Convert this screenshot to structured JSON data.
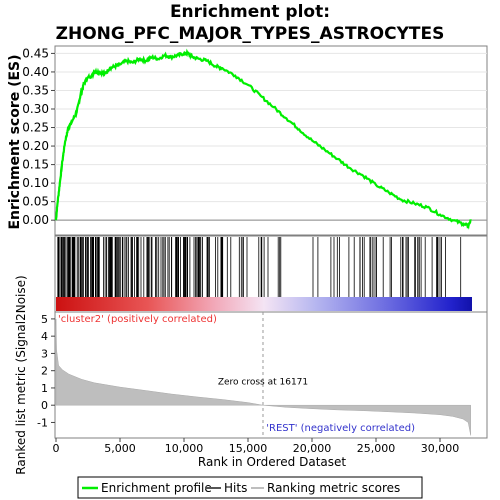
{
  "title_line1": "Enrichment plot:",
  "title_line2": "ZHONG_PFC_MAJOR_TYPES_ASTROCYTES",
  "colors": {
    "es_curve": "#00ee00",
    "hits": "#000000",
    "metric_fill": "#bebebe",
    "positive_label": "#ee3333",
    "negative_label": "#3333cc",
    "zero_line": "#888888",
    "frame": "#808080"
  },
  "chart_data": [
    {
      "type": "line",
      "name": "enrichment-score",
      "ylabel": "Enrichment score (ES)",
      "xlim": [
        0,
        32500
      ],
      "ylim": [
        -0.04,
        0.47
      ],
      "yticks": [
        0.0,
        0.05,
        0.1,
        0.15,
        0.2,
        0.25,
        0.3,
        0.35,
        0.4,
        0.45
      ],
      "ytick_labels": [
        "0.00",
        "0.05",
        "0.10",
        "0.15",
        "0.20",
        "0.25",
        "0.30",
        "0.35",
        "0.40",
        "0.45"
      ],
      "series": [
        {
          "name": "Enrichment profile",
          "x": [
            0,
            100,
            300,
            500,
            700,
            900,
            1100,
            1300,
            1600,
            1800,
            2000,
            2200,
            2500,
            2800,
            3000,
            3400,
            3800,
            4200,
            4600,
            5000,
            5500,
            6000,
            6500,
            7000,
            7500,
            8000,
            8500,
            9000,
            9500,
            10000,
            10300,
            10700,
            11200,
            11800,
            12500,
            13000,
            14000,
            15000,
            16000,
            17000,
            18000,
            19000,
            20000,
            21000,
            22000,
            23000,
            24000,
            25000,
            26000,
            27000,
            28000,
            29000,
            30000,
            31000,
            31800,
            32200,
            32400
          ],
          "y": [
            0.0,
            0.04,
            0.1,
            0.16,
            0.21,
            0.24,
            0.26,
            0.27,
            0.29,
            0.32,
            0.35,
            0.37,
            0.385,
            0.39,
            0.4,
            0.4,
            0.395,
            0.41,
            0.415,
            0.42,
            0.43,
            0.425,
            0.435,
            0.43,
            0.44,
            0.435,
            0.445,
            0.44,
            0.445,
            0.45,
            0.45,
            0.44,
            0.435,
            0.43,
            0.415,
            0.41,
            0.39,
            0.365,
            0.335,
            0.305,
            0.275,
            0.245,
            0.215,
            0.19,
            0.165,
            0.14,
            0.12,
            0.095,
            0.075,
            0.055,
            0.045,
            0.035,
            0.015,
            0.0,
            -0.01,
            -0.015,
            0.0
          ]
        }
      ]
    },
    {
      "type": "barcode",
      "name": "hits",
      "xlim": [
        0,
        32500
      ],
      "hit_density": [
        {
          "x0": 0,
          "x1": 3000,
          "density": 0.6
        },
        {
          "x0": 3000,
          "x1": 9500,
          "density": 0.35
        },
        {
          "x0": 9500,
          "x1": 12300,
          "density": 0.5
        },
        {
          "x0": 12300,
          "x1": 14500,
          "density": 0.15
        },
        {
          "x0": 14500,
          "x1": 17500,
          "density": 0.08
        },
        {
          "x0": 17500,
          "x1": 20000,
          "density": 0.05
        },
        {
          "x0": 20000,
          "x1": 24000,
          "density": 0.1
        },
        {
          "x0": 24000,
          "x1": 28000,
          "density": 0.12
        },
        {
          "x0": 28000,
          "x1": 30500,
          "density": 0.2
        },
        {
          "x0": 30500,
          "x1": 32400,
          "density": 0.06
        }
      ]
    },
    {
      "type": "area",
      "name": "ranked-list-metric",
      "xlabel": "Rank in Ordered Dataset",
      "ylabel": "Ranked list metric (Signal2Noise)",
      "xlim": [
        0,
        32500
      ],
      "ylim": [
        -1.9,
        5.4
      ],
      "xticks": [
        0,
        5000,
        10000,
        15000,
        20000,
        25000,
        30000
      ],
      "xtick_labels": [
        "0",
        "5,000",
        "10,000",
        "15,000",
        "20,000",
        "25,000",
        "30,000"
      ],
      "yticks": [
        -1,
        0,
        1,
        2,
        3,
        4,
        5
      ],
      "ytick_labels": [
        "-1",
        "0",
        "1",
        "2",
        "3",
        "4",
        "5"
      ],
      "zero_cross": 16171,
      "zero_cross_label": "Zero cross at 16171",
      "positive_label": "'cluster2' (positively correlated)",
      "negative_label": "'REST' (negatively correlated)",
      "x": [
        0,
        50,
        200,
        500,
        1000,
        2000,
        3000,
        5000,
        7000,
        9000,
        11000,
        13000,
        15000,
        16171,
        18000,
        20000,
        22000,
        24000,
        26000,
        28000,
        30000,
        31000,
        31800,
        32200,
        32400
      ],
      "y": [
        5.0,
        3.2,
        2.3,
        2.05,
        1.8,
        1.5,
        1.3,
        1.05,
        0.85,
        0.65,
        0.48,
        0.33,
        0.15,
        0.0,
        -0.12,
        -0.2,
        -0.27,
        -0.32,
        -0.38,
        -0.45,
        -0.55,
        -0.65,
        -0.8,
        -1.0,
        -1.75
      ]
    }
  ],
  "legend": {
    "items": [
      {
        "label": "Enrichment profile",
        "color": "#00ee00"
      },
      {
        "label": "Hits",
        "color": "#000000"
      },
      {
        "label": "Ranking metric scores",
        "color": "#bebebe"
      }
    ]
  }
}
